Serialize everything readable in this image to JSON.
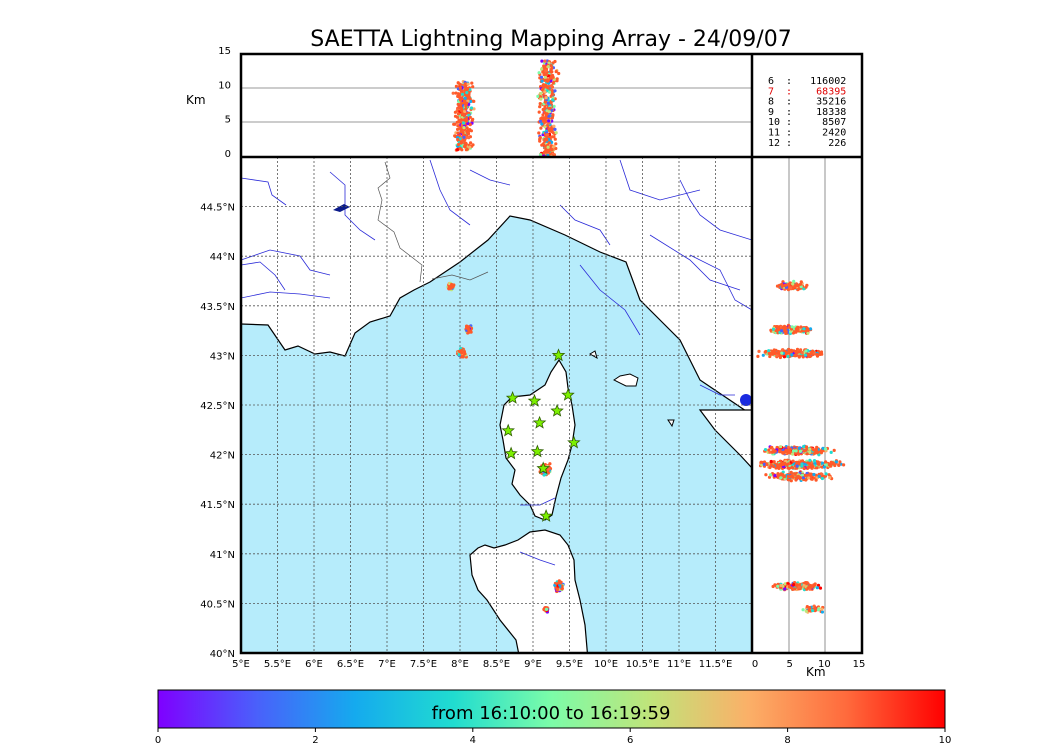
{
  "title": "SAETTA Lightning Mapping Array - 24/09/07",
  "colors": {
    "sea": "#b6ecfb",
    "land": "#ffffff",
    "river": "#2a2ad8",
    "border": "#555555",
    "coast": "#000000",
    "station_fill": "#7cf000",
    "station_stroke": "#2f5e00",
    "highlight_count": "#e00000"
  },
  "map": {
    "lon_ticks": [
      "5°E",
      "5.5°E",
      "6°E",
      "6.5°E",
      "7°E",
      "7.5°E",
      "8°E",
      "8.5°E",
      "9°E",
      "9.5°E",
      "10°E",
      "10.5°E",
      "11°E",
      "11.5°E"
    ],
    "lat_ticks": [
      "40°N",
      "40.5°N",
      "41°N",
      "41.5°N",
      "42°N",
      "42.5°N",
      "43°N",
      "43.5°N",
      "44°N",
      "44.5°N"
    ],
    "lon_range": [
      5,
      12.0
    ],
    "lat_range": [
      40,
      45.0
    ],
    "stations": [
      {
        "lon": 9.35,
        "lat": 43.0
      },
      {
        "lon": 8.72,
        "lat": 42.57
      },
      {
        "lon": 9.02,
        "lat": 42.54
      },
      {
        "lon": 9.48,
        "lat": 42.6
      },
      {
        "lon": 9.33,
        "lat": 42.44
      },
      {
        "lon": 9.09,
        "lat": 42.32
      },
      {
        "lon": 8.66,
        "lat": 42.24
      },
      {
        "lon": 9.56,
        "lat": 42.12
      },
      {
        "lon": 8.7,
        "lat": 42.01
      },
      {
        "lon": 9.06,
        "lat": 42.03
      },
      {
        "lon": 9.14,
        "lat": 41.86
      },
      {
        "lon": 9.18,
        "lat": 41.38
      }
    ],
    "lightning_clusters": [
      {
        "lon": 7.87,
        "lat": 43.7,
        "count": 60,
        "spread": 0.05
      },
      {
        "lon": 8.12,
        "lat": 43.26,
        "count": 70,
        "spread": 0.06
      },
      {
        "lon": 8.02,
        "lat": 43.02,
        "count": 80,
        "spread": 0.07
      },
      {
        "lon": 9.17,
        "lat": 41.85,
        "count": 140,
        "spread": 0.09
      },
      {
        "lon": 9.35,
        "lat": 40.67,
        "count": 90,
        "spread": 0.08
      },
      {
        "lon": 9.18,
        "lat": 40.44,
        "count": 30,
        "spread": 0.04
      }
    ]
  },
  "altitude_panel": {
    "unit": "Km",
    "ticks": [
      "0",
      "5",
      "10",
      "15"
    ],
    "range": [
      0,
      15
    ],
    "columns": [
      {
        "lon": 8.05,
        "height_min": 1,
        "height_max": 11,
        "count": 350
      },
      {
        "lon": 9.2,
        "height_min": 0,
        "height_max": 14,
        "count": 420
      }
    ]
  },
  "side_panel": {
    "unit": "Km",
    "ticks": [
      "0",
      "5",
      "10",
      "15"
    ],
    "range": [
      0,
      15
    ],
    "bands": [
      {
        "lat": 43.7,
        "alt_center": 5.5,
        "spread": 2.5,
        "count": 120
      },
      {
        "lat": 43.26,
        "alt_center": 5.0,
        "spread": 4.0,
        "count": 180
      },
      {
        "lat": 43.02,
        "alt_center": 5.5,
        "spread": 5.5,
        "count": 260
      },
      {
        "lat": 42.04,
        "alt_center": 6.0,
        "spread": 6.0,
        "count": 300
      },
      {
        "lat": 41.9,
        "alt_center": 6.5,
        "spread": 7.0,
        "count": 380
      },
      {
        "lat": 41.78,
        "alt_center": 6.0,
        "spread": 6.0,
        "count": 200
      },
      {
        "lat": 40.67,
        "alt_center": 6.0,
        "spread": 4.0,
        "count": 150
      },
      {
        "lat": 40.44,
        "alt_center": 8.5,
        "spread": 2.0,
        "count": 40
      }
    ]
  },
  "station_counts": [
    {
      "text": "6  :   116002",
      "highlight": false
    },
    {
      "text": "7  :    68395",
      "highlight": true
    },
    {
      "text": "8  :    35216",
      "highlight": false
    },
    {
      "text": "9  :    18338",
      "highlight": false
    },
    {
      "text": "10 :     8507",
      "highlight": false
    },
    {
      "text": "11 :     2420",
      "highlight": false
    },
    {
      "text": "12 :      226",
      "highlight": false
    }
  ],
  "colorbar": {
    "label": "from 16:10:00 to 16:19:59",
    "ticks": [
      "0",
      "2",
      "4",
      "6",
      "8",
      "10"
    ],
    "range": [
      0,
      10
    ],
    "stops": [
      "#7f00ff",
      "#4a60fb",
      "#15aaee",
      "#20dcd0",
      "#7cfca8",
      "#c0e47a",
      "#fbb068",
      "#ff6a3c",
      "#ff0000"
    ]
  }
}
